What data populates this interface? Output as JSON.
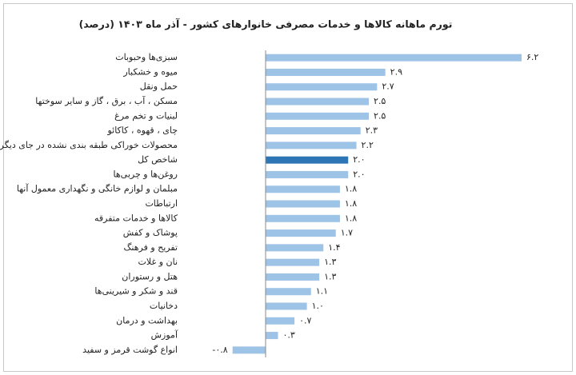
{
  "chart_data": {
    "type": "bar",
    "orientation": "horizontal",
    "title": "تورم ماهانه کالاها و خدمات مصرفی خانوارهای کشور - آذر ماه ۱۴۰۳ (درصد)",
    "categories": [
      "سبزی‌ها وحبوبات",
      "میوه و خشکبار",
      "حمل ونقل",
      "مسکن ، آب ، برق ، گاز و سایر سوختها",
      "لبنیات و تخم مرغ",
      "چای ، قهوه ، کاکائو",
      "محصولات خوراکی طبقه بندی نشده در جای دیگر",
      "شاخص کل",
      "روغن‌ها و چربی‌ها",
      "مبلمان و لوازم خانگی و نگهداری معمول آنها",
      "ارتباطات",
      "کالاها و خدمات متفرقه",
      "پوشاک و کفش",
      "تفریح و فرهنگ",
      "نان و غلات",
      "هتل و رستوران",
      "قند و شکر و شیرینی‌ها",
      "دخانیات",
      "بهداشت و درمان",
      "آموزش",
      "انواع گوشت قرمز و سفید"
    ],
    "values": [
      6.2,
      2.9,
      2.7,
      2.5,
      2.5,
      2.3,
      2.2,
      2.0,
      2.0,
      1.8,
      1.8,
      1.8,
      1.7,
      1.4,
      1.3,
      1.3,
      1.1,
      1.0,
      0.7,
      0.3,
      -0.8
    ],
    "value_labels": [
      "۶.۲",
      "۲.۹",
      "۲.۷",
      "۲.۵",
      "۲.۵",
      "۲.۳",
      "۲.۲",
      "۲.۰",
      "۲.۰",
      "۱.۸",
      "۱.۸",
      "۱.۸",
      "۱.۷",
      "۱.۴",
      "۱.۳",
      "۱.۳",
      "۱.۱",
      "۱.۰",
      "۰.۷",
      "۰.۳",
      "-۰.۸"
    ],
    "colors": [
      "#9dc3e6",
      "#9dc3e6",
      "#9dc3e6",
      "#9dc3e6",
      "#9dc3e6",
      "#9dc3e6",
      "#9dc3e6",
      "#2e75b6",
      "#9dc3e6",
      "#9dc3e6",
      "#9dc3e6",
      "#9dc3e6",
      "#9dc3e6",
      "#9dc3e6",
      "#9dc3e6",
      "#9dc3e6",
      "#9dc3e6",
      "#9dc3e6",
      "#9dc3e6",
      "#9dc3e6",
      "#9dc3e6"
    ]
  }
}
